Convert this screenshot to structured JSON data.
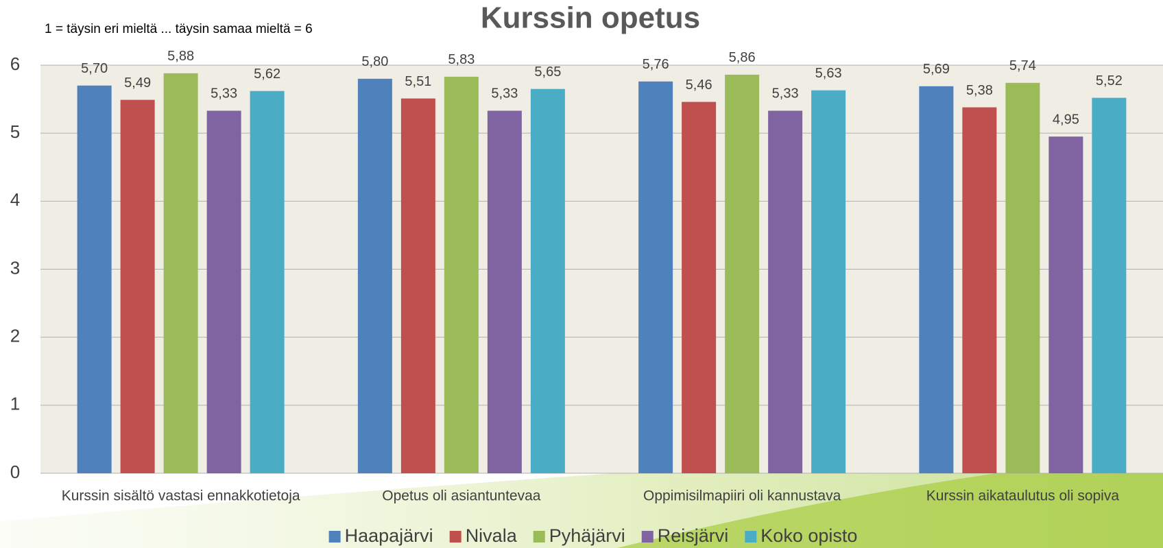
{
  "chart_data": {
    "type": "bar",
    "title": "Kurssin opetus",
    "subtitle": "1 = täysin eri mieltä ... täysin samaa mieltä = 6",
    "categories": [
      "Kurssin sisältö vastasi ennakkotietoja",
      "Opetus oli asiantuntevaa",
      "Oppimisilmapiiri oli kannustava",
      "Kurssin aikataulutus oli sopiva"
    ],
    "series": [
      {
        "name": "Haapajärvi",
        "color": "#4f81bd",
        "values": [
          5.7,
          5.8,
          5.76,
          5.69
        ],
        "value_labels": [
          "5,70",
          "5,80",
          "5,76",
          "5,69"
        ]
      },
      {
        "name": "Nivala",
        "color": "#c0504d",
        "values": [
          5.49,
          5.51,
          5.46,
          5.38
        ],
        "value_labels": [
          "5,49",
          "5,51",
          "5,46",
          "5,38"
        ]
      },
      {
        "name": "Pyhäjärvi",
        "color": "#9bbb59",
        "values": [
          5.88,
          5.83,
          5.86,
          5.74
        ],
        "value_labels": [
          "5,88",
          "5,83",
          "5,86",
          "5,74"
        ]
      },
      {
        "name": "Reisjärvi",
        "color": "#8064a2",
        "values": [
          5.33,
          5.33,
          5.33,
          4.95
        ],
        "value_labels": [
          "5,33",
          "5,33",
          "5,33",
          "4,95"
        ]
      },
      {
        "name": "Koko opisto",
        "color": "#4bacc6",
        "values": [
          5.62,
          5.65,
          5.63,
          5.52
        ],
        "value_labels": [
          "5,62",
          "5,65",
          "5,63",
          "5,52"
        ]
      }
    ],
    "ylim": [
      0,
      6
    ],
    "yticks": [
      0,
      1,
      2,
      3,
      4,
      5,
      6
    ],
    "grid": true,
    "legend": "bottom"
  }
}
